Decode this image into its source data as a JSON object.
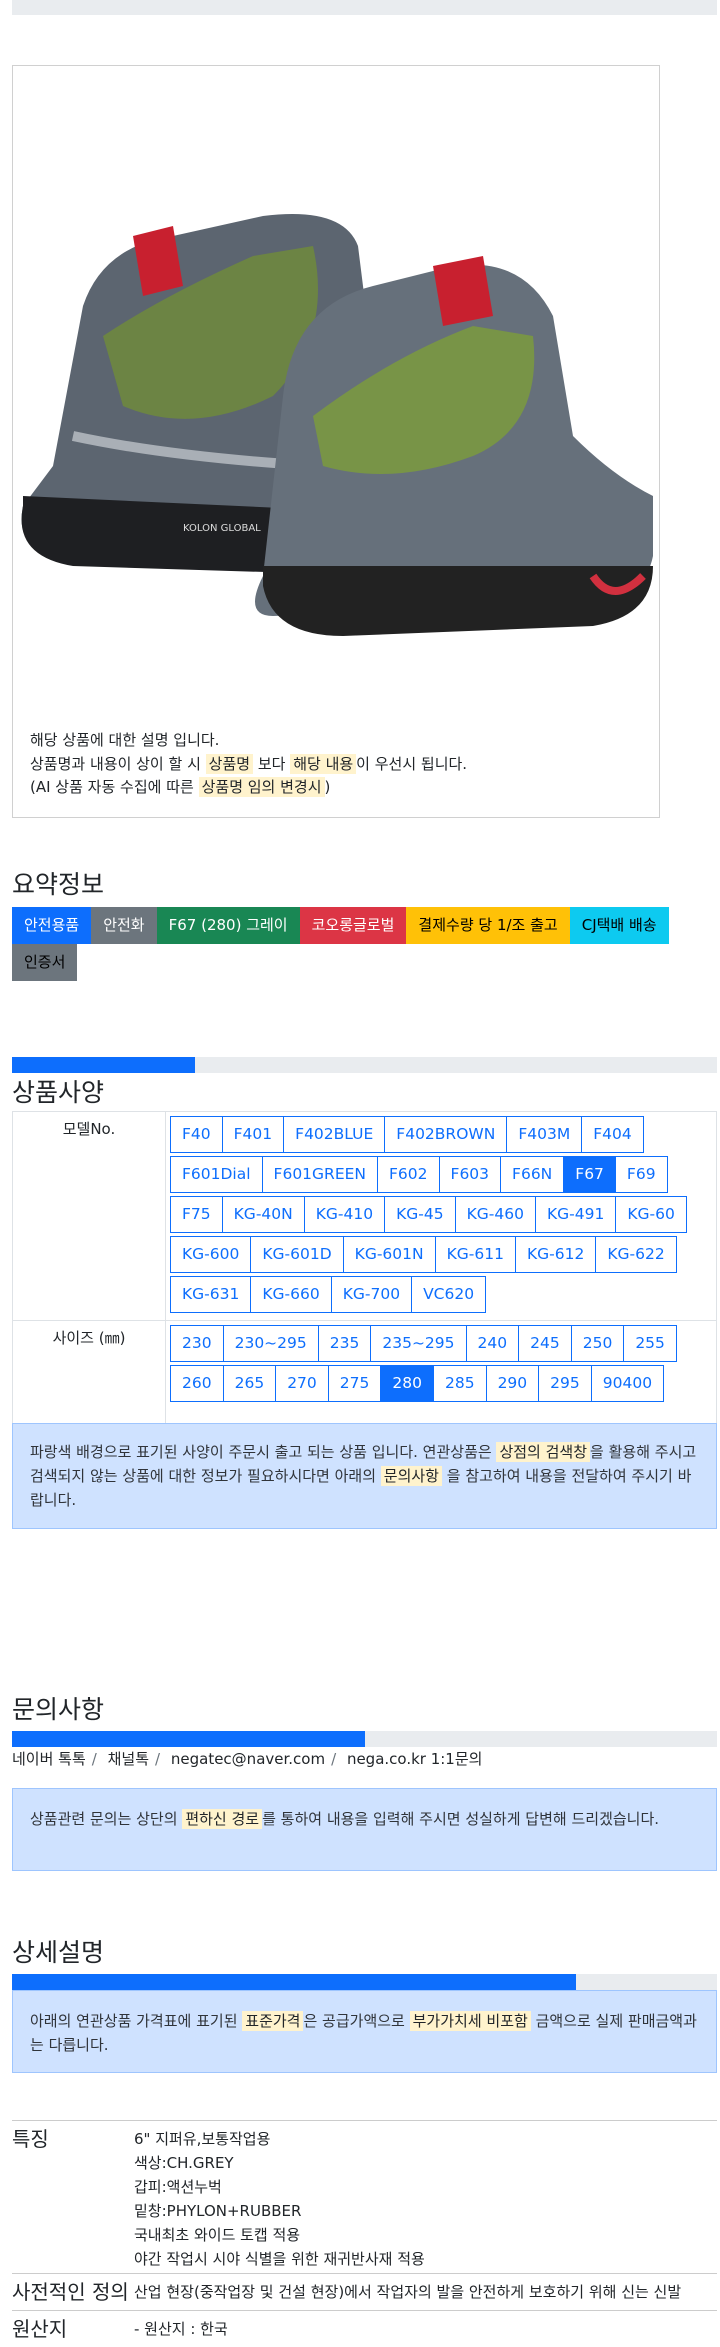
{
  "product_image": {
    "brand_text": "KOLON GLOBAL",
    "alt": "shoe-image"
  },
  "notice": {
    "line1": "해당 상품에 대한 설명 입니다.",
    "line2_a": "상품명과 내용이 상이 할 시 ",
    "line2_hl1": "상품명",
    "line2_b": " 보다 ",
    "line2_hl2": "해당 내용",
    "line2_c": "이 우선시 됩니다.",
    "line3_a": "(AI 상품 자동 수집에 따른 ",
    "line3_hl": "상품명 임의 변경시",
    "line3_b": ")"
  },
  "summary": {
    "title": "요약정보",
    "badges": [
      {
        "label": "안전용품",
        "color": "#0d6efd",
        "text": "#fff"
      },
      {
        "label": "안전화",
        "color": "#6c757d",
        "text": "#fff"
      },
      {
        "label": "F67 (280) 그레이",
        "color": "#198754",
        "text": "#fff"
      },
      {
        "label": "코오롱글로벌",
        "color": "#dc3545",
        "text": "#fff"
      },
      {
        "label": "결제수량 당 1/조 출고",
        "color": "#ffc107",
        "text": "#000"
      },
      {
        "label": "CJ택배 배송",
        "color": "#0dcaf0",
        "text": "#000"
      },
      {
        "label": "인증서",
        "color": "#6c757d",
        "text": "#000"
      }
    ]
  },
  "spec": {
    "progress": 26,
    "title": "상품사양",
    "model_label": "모델No.",
    "models": [
      "F40",
      "F401",
      "F402BLUE",
      "F402BROWN",
      "F403M",
      "F404",
      "F601Dial",
      "F601GREEN",
      "F602",
      "F603",
      "F66N",
      "F67",
      "F69",
      "F75",
      "KG-40N",
      "KG-410",
      "KG-45",
      "KG-460",
      "KG-491",
      "KG-60",
      "KG-600",
      "KG-601D",
      "KG-601N",
      "KG-611",
      "KG-612",
      "KG-622",
      "KG-631",
      "KG-660",
      "KG-700",
      "VC620"
    ],
    "selected_model": "F67",
    "size_label": "사이즈 (㎜)",
    "sizes": [
      "230",
      "230~295",
      "235",
      "235~295",
      "240",
      "245",
      "250",
      "255",
      "260",
      "265",
      "270",
      "275",
      "280",
      "285",
      "290",
      "295",
      "90400"
    ],
    "selected_size": "280",
    "note_a": "파랑색 배경으로 표기된 사양이 주문시 출고 되는 상품 입니다. 연관상품은 ",
    "note_hl1": "상점의 검색창",
    "note_b": "을 활용해 주시고 검색되지 않는 상품에 대한 정보가 필요하시다면 아래의 ",
    "note_hl2": "문의사항",
    "note_c": " 을 참고하여 내용을 전달하여 주시기 바랍니다."
  },
  "inquiry": {
    "title": "문의사항",
    "progress": 50,
    "links": [
      "네이버 톡톡",
      "채널톡",
      "negatec@naver.com",
      "nega.co.kr 1:1문의"
    ],
    "sep": "/",
    "note_a": "상품관련 문의는 상단의 ",
    "note_hl": "편하신 경로",
    "note_b": "를 통하여 내용을 입력해 주시면 성실하게 답변해 드리겠습니다."
  },
  "detail": {
    "title": "상세설명",
    "progress": 80,
    "note_a": "아래의 연관상품 가격표에 표기된 ",
    "note_hl1": "표준가격",
    "note_b": "은 공급가액으로 ",
    "note_hl2": "부가가치세 비포함",
    "note_c": " 금액으로 실제 판매금액과는 다릅니다.",
    "rows": [
      {
        "key": "특징",
        "lines": [
          "6\" 지퍼유,보통작업용",
          "색상:CH.GREY",
          "갑피:액션누벅",
          "밑창:PHYLON+RUBBER",
          "국내최초 와이드 토캡 적용",
          "야간 작업시 시야 식별을 위한 재귀반사재 적용"
        ]
      },
      {
        "key": "사전적인 정의",
        "lines": [
          "산업 현장(중작업장 및 건설 현장)에서 작업자의 발을 안전하게 보호하기 위해 신는 신발"
        ]
      },
      {
        "key": "원산지",
        "lines": [
          "- 원산지 : 한국"
        ]
      }
    ]
  }
}
